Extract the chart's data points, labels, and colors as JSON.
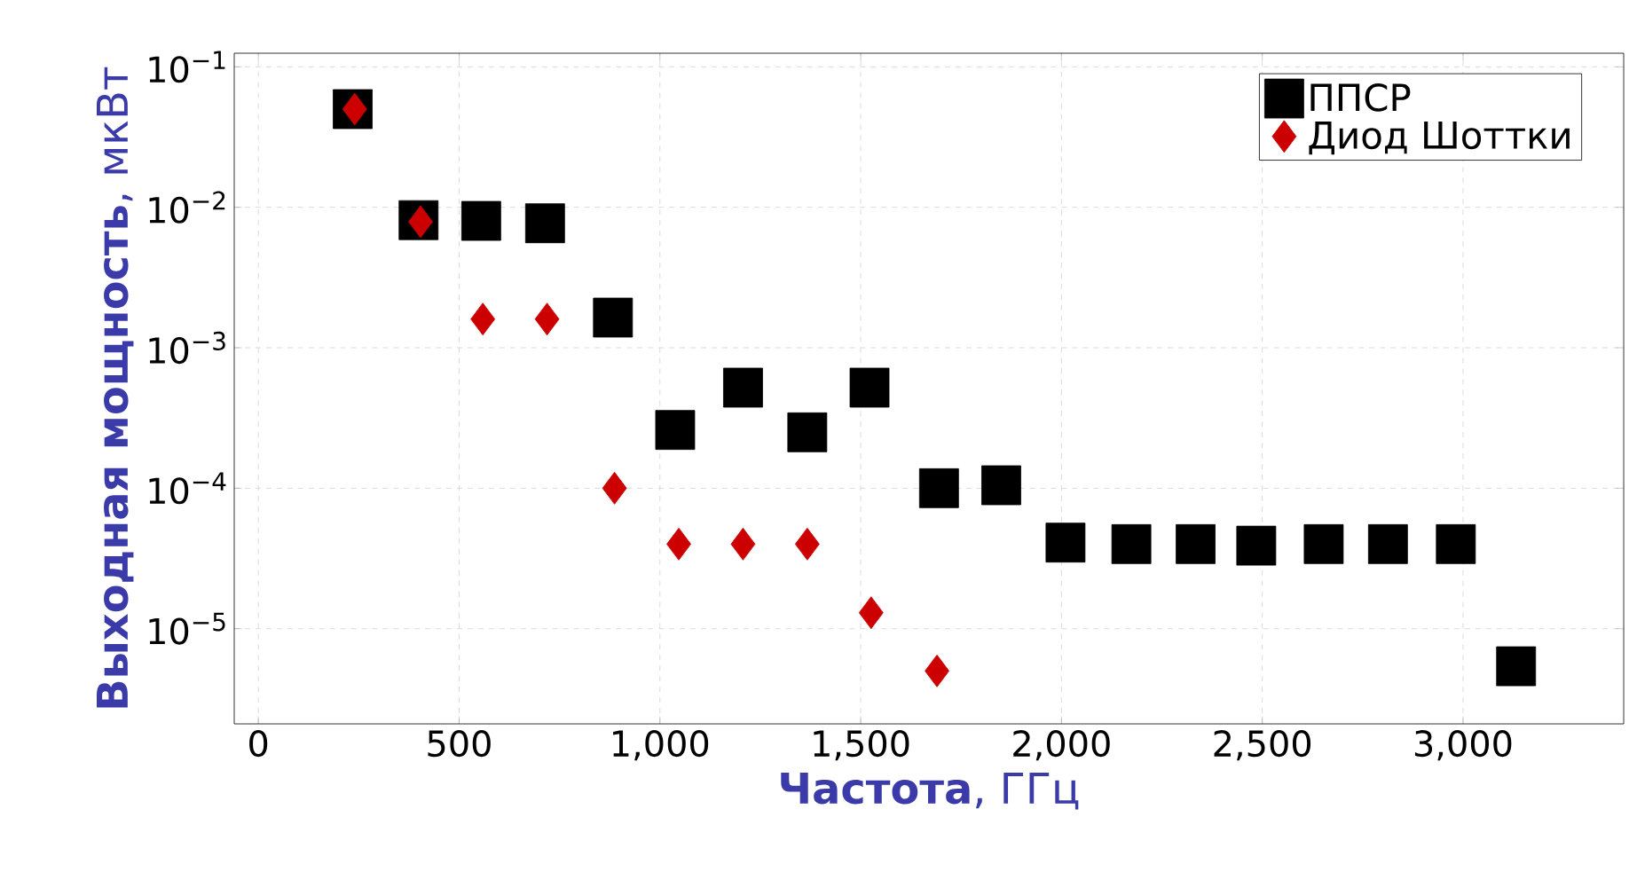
{
  "chart_data": {
    "type": "scatter",
    "xlabel": "**Частота**, ГГц",
    "ylabel": "**Выходная мощность**, мкВт",
    "log": "y",
    "grid": true,
    "legend": "top right",
    "xlim": [
      -60,
      3400
    ],
    "ylim": [
      2.1e-06,
      0.125
    ],
    "xticks": [
      0,
      500,
      {
        "value": 1000,
        "label": "1,000"
      },
      {
        "value": 1500,
        "label": "1,500"
      },
      {
        "value": 2000,
        "label": "2,000"
      },
      {
        "value": 2500,
        "label": "2,500"
      },
      {
        "value": 3000,
        "label": "3,000"
      }
    ],
    "yticks": [
      {
        "value": 0.1,
        "label": "10$^{−1}$"
      },
      {
        "value": 0.01,
        "label": "10$^{−2}$"
      },
      {
        "value": 0.001,
        "label": "10$^{−3}$"
      },
      {
        "value": 0.0001,
        "label": "10$^{−4}$"
      },
      {
        "value": 1e-05,
        "label": "10$^{−5}$"
      }
    ],
    "series": [
      {
        "name": "ППСР",
        "color": "#000000",
        "marker": "square",
        "x": [
          235,
          399,
          555,
          714,
          883,
          1038,
          1207,
          1367,
          1522,
          1695,
          1850,
          2010,
          2174,
          2334,
          2485,
          2653,
          2813,
          2982,
          3132
        ],
        "values": [
          0.05,
          0.0081,
          0.008,
          0.0077,
          0.00164,
          0.00026,
          0.00052,
          0.00025,
          0.00052,
          0.0001,
          0.000105,
          4.1e-05,
          4e-05,
          4e-05,
          3.9e-05,
          4e-05,
          4e-05,
          4e-05,
          5.4e-06
        ]
      },
      {
        "name": "Диод Шоттки",
        "color": "#cc0000",
        "marker": "diamond",
        "x": [
          240,
          404,
          559,
          719,
          887,
          1047,
          1207,
          1367,
          1526,
          1690
        ],
        "values": [
          0.05,
          0.0079,
          0.0016,
          0.0016,
          0.0001,
          4e-05,
          4e-05,
          4e-05,
          1.3e-05,
          5e-06
        ]
      }
    ]
  }
}
